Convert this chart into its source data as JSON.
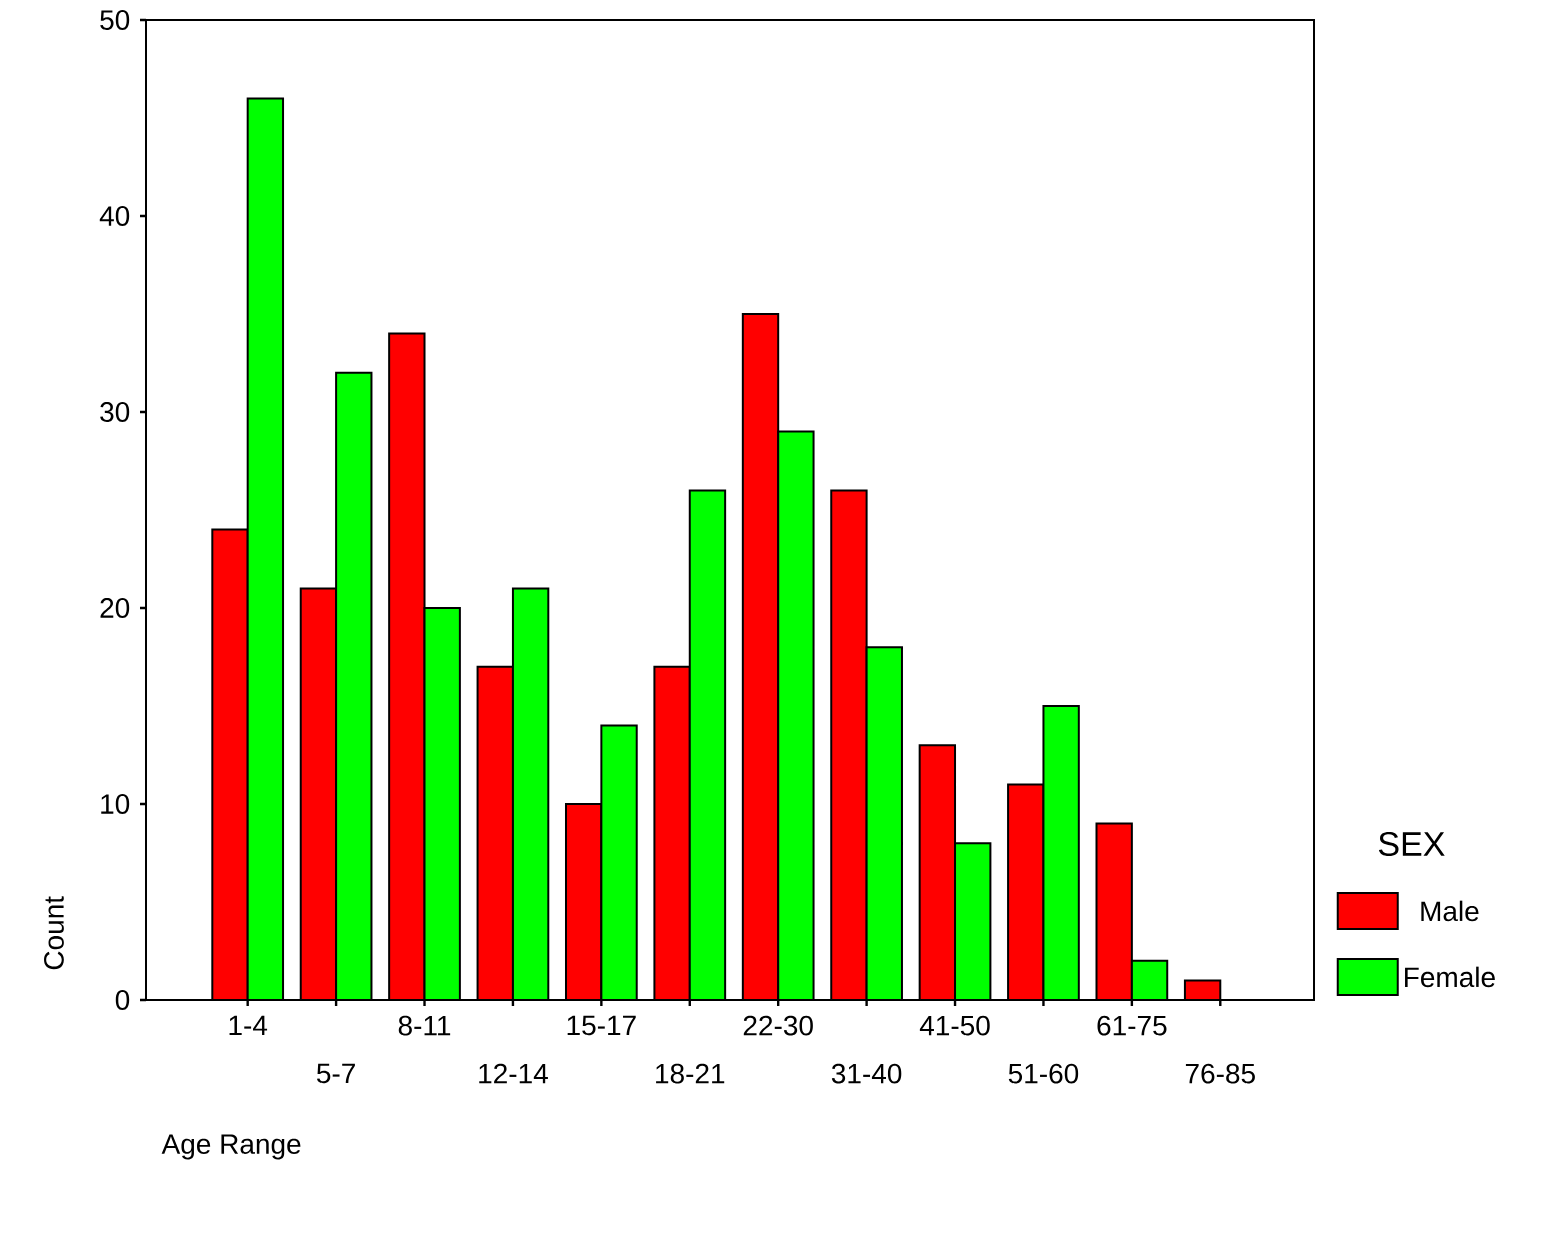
{
  "chart_data": {
    "type": "bar",
    "xlabel": "Age Range",
    "ylabel": "Count",
    "legend_title": "SEX",
    "legend": "right",
    "categories": [
      "1-4",
      "5-7",
      "8-11",
      "12-14",
      "15-17",
      "18-21",
      "22-30",
      "31-40",
      "41-50",
      "51-60",
      "61-75",
      "76-85"
    ],
    "series": [
      {
        "name": "Male",
        "color": "#ff0000",
        "values": [
          24,
          21,
          34,
          17,
          10,
          17,
          35,
          26,
          13,
          11,
          9,
          1
        ]
      },
      {
        "name": "Female",
        "color": "#00ff00",
        "values": [
          46,
          32,
          20,
          21,
          14,
          26,
          29,
          18,
          8,
          15,
          2,
          null
        ]
      }
    ],
    "ylim": [
      0,
      50
    ],
    "yticks": [
      0,
      10,
      20,
      30,
      40,
      50
    ]
  }
}
